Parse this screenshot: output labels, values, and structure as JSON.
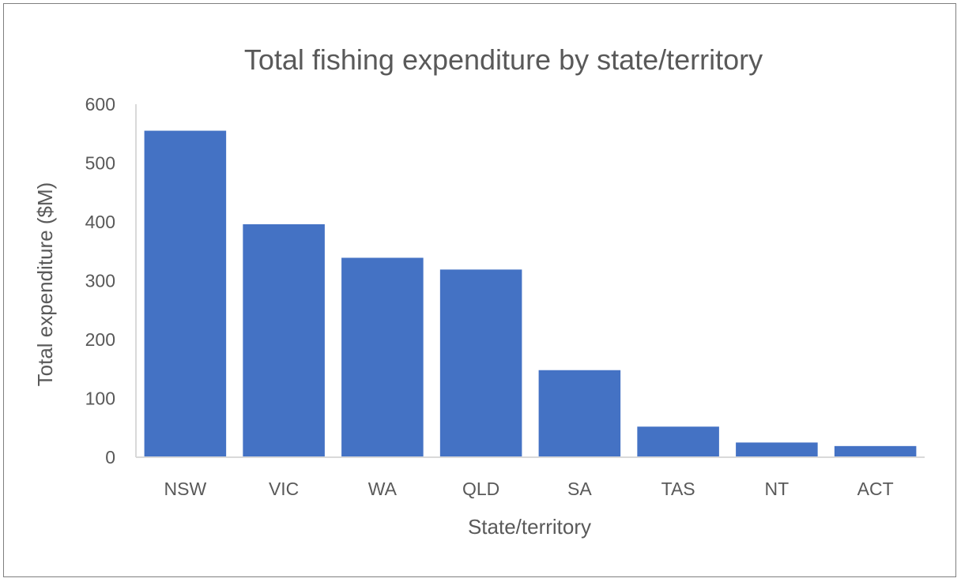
{
  "chart_data": {
    "type": "bar",
    "title": "Total fishing expenditure by state/territory",
    "xlabel": "State/territory",
    "ylabel": "Total expenditure ($M)",
    "categories": [
      "NSW",
      "VIC",
      "WA",
      "QLD",
      "SA",
      "TAS",
      "NT",
      "ACT"
    ],
    "values": [
      555,
      396,
      339,
      319,
      148,
      52,
      25,
      19
    ],
    "ylim": [
      0,
      600
    ],
    "yticks": [
      "0",
      "100",
      "200",
      "300",
      "400",
      "500",
      "600"
    ],
    "grid": false,
    "legend": "none",
    "bar_color": "#4472c4",
    "axis_color": "#d9d9d9"
  }
}
